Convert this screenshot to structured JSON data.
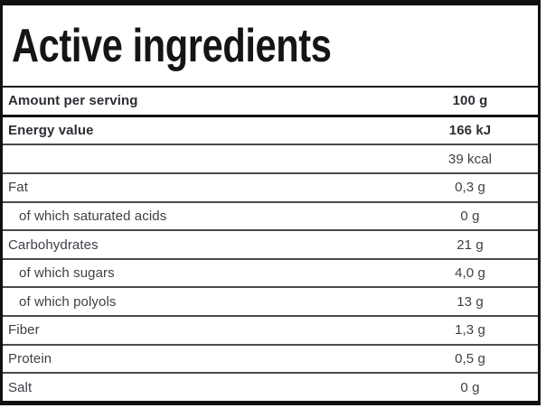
{
  "title": "Active ingredients",
  "table": {
    "header": {
      "label": "Amount per serving",
      "value": "100 g"
    },
    "rows": [
      {
        "label": "Energy value",
        "value": "166 kJ"
      },
      {
        "label": "",
        "value": "39 kcal"
      },
      {
        "label": "Fat",
        "value": "0,3 g"
      },
      {
        "label": "of which saturated acids",
        "value": "0 g"
      },
      {
        "label": "Carbohydrates",
        "value": "21 g"
      },
      {
        "label": "of which sugars",
        "value": "4,0 g"
      },
      {
        "label": "of which polyols",
        "value": "13 g"
      },
      {
        "label": "Fiber",
        "value": "1,3 g"
      },
      {
        "label": "Protein",
        "value": "0,5 g"
      },
      {
        "label": "Salt",
        "value": "0 g"
      }
    ]
  },
  "colors": {
    "border": "#111111",
    "separator_heavy": "#101010",
    "separator_light": "#4a4a4a",
    "title_text": "#141517",
    "bold_text": "#2b2e33",
    "regular_text": "#3d4147",
    "background": "#ffffff"
  }
}
